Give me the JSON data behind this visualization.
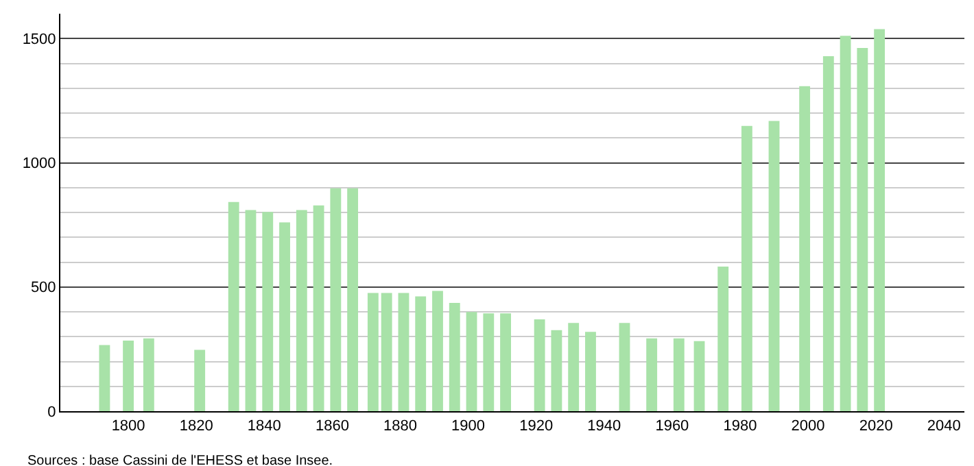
{
  "chart_data": {
    "type": "bar",
    "x": [
      1793,
      1800,
      1806,
      1821,
      1831,
      1836,
      1841,
      1846,
      1851,
      1856,
      1861,
      1866,
      1872,
      1876,
      1881,
      1886,
      1891,
      1896,
      1901,
      1906,
      1911,
      1921,
      1926,
      1931,
      1936,
      1946,
      1954,
      1962,
      1968,
      1975,
      1982,
      1990,
      1999,
      2006,
      2011,
      2016,
      2021
    ],
    "values": [
      266,
      284,
      293,
      247,
      842,
      810,
      802,
      760,
      810,
      828,
      897,
      897,
      476,
      476,
      476,
      462,
      484,
      436,
      399,
      394,
      394,
      370,
      326,
      355,
      319,
      355,
      293,
      293,
      282,
      582,
      1148,
      1168,
      1308,
      1429,
      1511,
      1462,
      1538
    ],
    "color": "#a8e2a8",
    "xlim": [
      1780,
      2046
    ],
    "xticks": [
      1800,
      1820,
      1840,
      1860,
      1880,
      1900,
      1920,
      1940,
      1960,
      1980,
      2000,
      2020,
      2040
    ],
    "ylim": [
      0,
      1600
    ],
    "yticks": [
      0,
      500,
      1000,
      1500
    ],
    "grid": "y",
    "annotations": [
      "Sources : base Cassini de l'EHESS et base Insee."
    ]
  }
}
